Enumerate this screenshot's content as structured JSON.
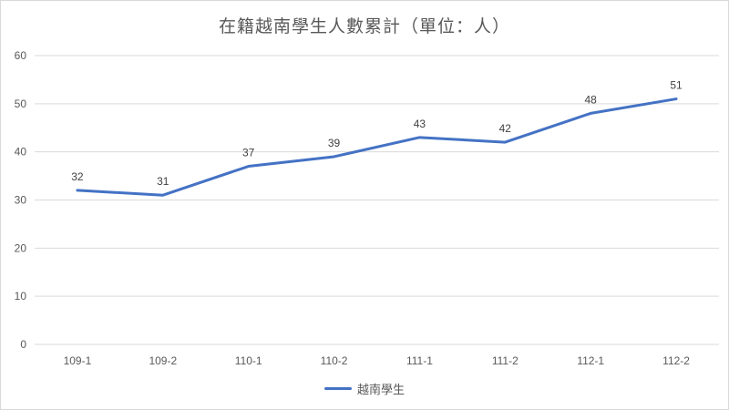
{
  "chart": {
    "title": "在籍越南學生人數累計（單位：人）",
    "legend": {
      "series_label": "越南學生"
    }
  },
  "chart_data": {
    "type": "line",
    "title": "在籍越南學生人數累計（單位：人）",
    "categories": [
      "109-1",
      "109-2",
      "110-1",
      "110-2",
      "111-1",
      "111-2",
      "112-1",
      "112-2"
    ],
    "series": [
      {
        "name": "越南學生",
        "values": [
          32,
          31,
          37,
          39,
          43,
          42,
          48,
          51
        ],
        "color": "#4472C4"
      }
    ],
    "xlabel": "",
    "ylabel": "",
    "ylim": [
      0,
      60
    ],
    "yticks": [
      0,
      10,
      20,
      30,
      40,
      50,
      60
    ],
    "grid": true,
    "data_labels": true,
    "legend_position": "bottom"
  },
  "colors": {
    "line": "#4472C4",
    "gridline": "#d9d9d9",
    "axis_text": "#595959",
    "data_label_text": "#404040",
    "background": "#ffffff",
    "frame_border": "#d9d9d9"
  }
}
